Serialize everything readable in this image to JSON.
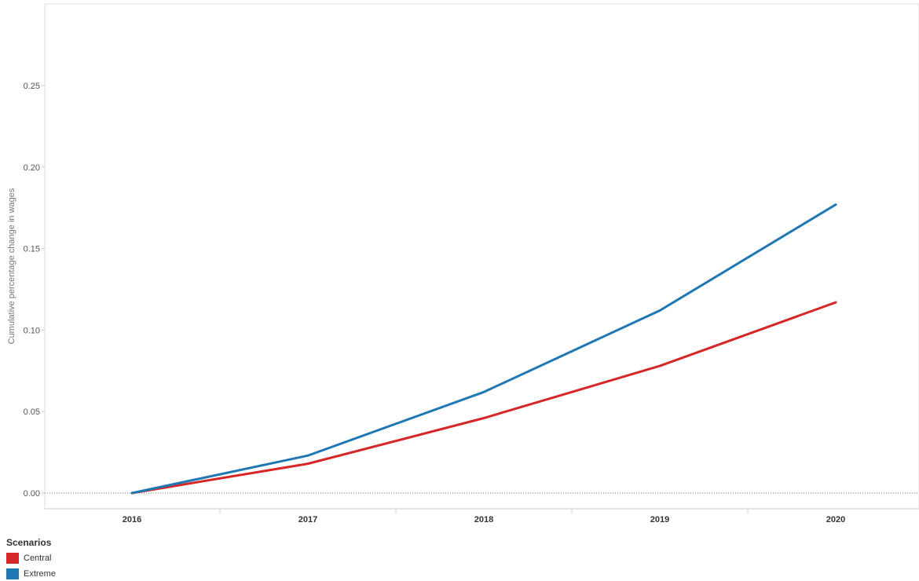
{
  "chart_data": {
    "type": "line",
    "title": "",
    "xlabel": "",
    "ylabel": "Cumulative percentage change in wages",
    "x": [
      "2016",
      "2017",
      "2018",
      "2019",
      "2020"
    ],
    "ylim": [
      -0.01,
      0.3
    ],
    "yticks": [
      0.0,
      0.05,
      0.1,
      0.15,
      0.2,
      0.25
    ],
    "ytick_labels": [
      "0.00",
      "0.05",
      "0.10",
      "0.15",
      "0.20",
      "0.25"
    ],
    "series": [
      {
        "name": "Central",
        "color": "#d62728",
        "values": [
          0.0,
          0.018,
          0.046,
          0.078,
          0.117
        ]
      },
      {
        "name": "Extreme",
        "color": "#1f77b4",
        "values": [
          0.0,
          0.023,
          0.062,
          0.112,
          0.177
        ]
      }
    ],
    "grid": false,
    "zero_line": "dotted",
    "legend": {
      "title": "Scenarios",
      "position": "bottom-left"
    }
  }
}
